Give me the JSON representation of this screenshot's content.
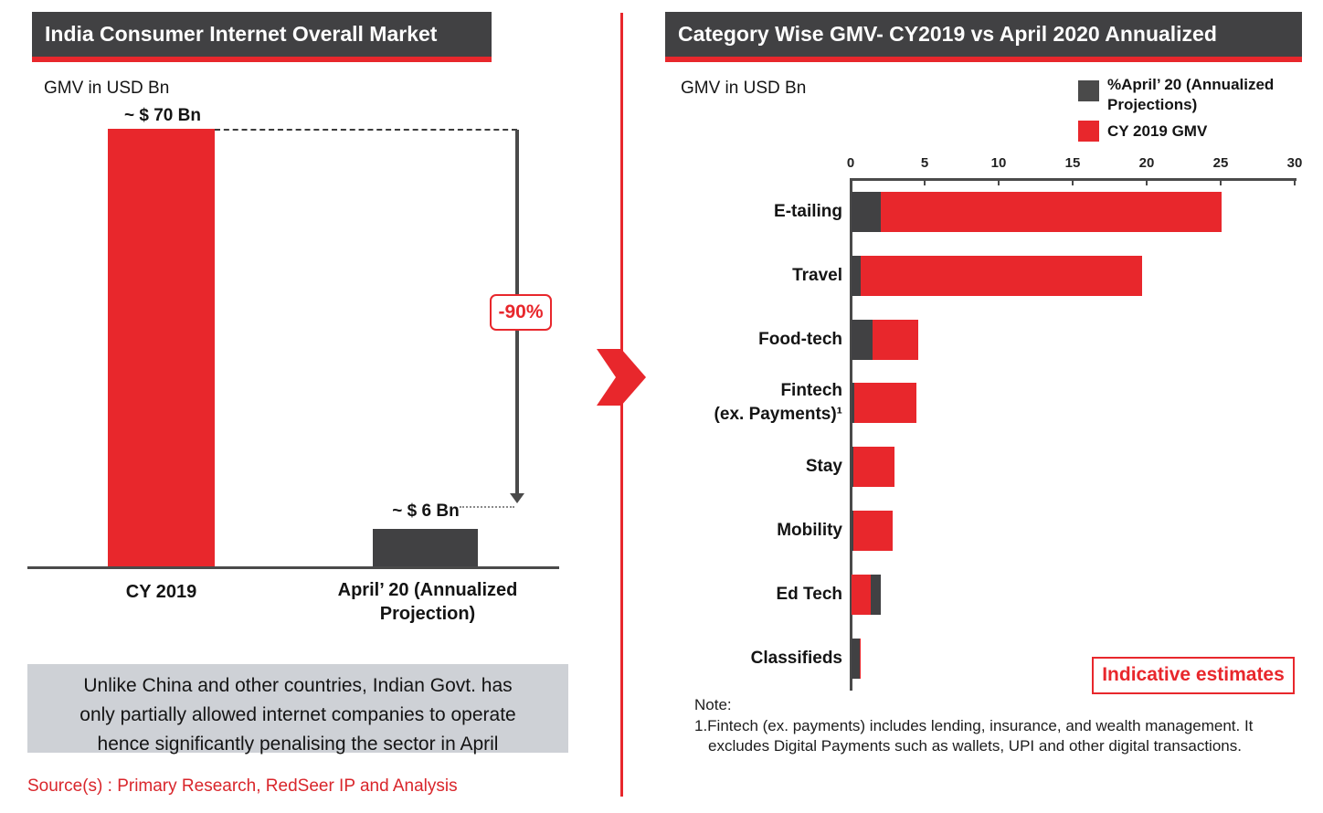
{
  "colors": {
    "red": "#e8272c",
    "dark": "#414143",
    "axis_gray": "#4a4a4a",
    "callout_bg": "#ced1d6"
  },
  "left_panel": {
    "title": "India Consumer Internet Overall Market",
    "unit_label": "GMV in USD Bn",
    "cat2_lines": [
      "April’ 20 (Annualized",
      "Projection)"
    ],
    "callout_lines": [
      "Unlike China and other countries, Indian Govt. has",
      "only partially allowed internet companies to operate",
      "hence significantly penalising the sector in April"
    ],
    "source": "Source(s) : Primary Research, RedSeer IP and Analysis"
  },
  "right_panel": {
    "title": "Category Wise GMV- CY2019 vs April 2020 Annualized",
    "unit_label": "GMV in USD Bn",
    "legend": {
      "item1_lines": [
        "%April’ 20 (Annualized",
        "Projections)"
      ],
      "item2_label": "CY 2019 GMV"
    },
    "note_title": "Note:",
    "note_lines": [
      "1.Fintech (ex. payments) includes lending, insurance, and wealth management. It",
      "excludes Digital Payments such as wallets, UPI and other  digital transactions."
    ]
  },
  "chart_data": [
    {
      "id": "overall-market",
      "type": "bar",
      "title": "India Consumer Internet Overall Market",
      "ylabel": "GMV in USD Bn",
      "categories": [
        "CY 2019",
        "April’ 20 (Annualized Projection)"
      ],
      "values": [
        70,
        6
      ],
      "value_labels": [
        "~ $ 70 Bn",
        "~ $ 6 Bn"
      ],
      "bar_colors": [
        "red",
        "dark"
      ],
      "ylim": [
        0,
        70
      ],
      "annotation": "-90%"
    },
    {
      "id": "category-gmv",
      "type": "bar",
      "orientation": "horizontal",
      "overlap": true,
      "title": "Category Wise GMV- CY2019 vs April 2020 Annualized",
      "ylabel": "GMV in USD Bn",
      "xlim": [
        0,
        30
      ],
      "xticks": [
        0,
        5,
        10,
        15,
        20,
        25,
        30
      ],
      "legend_position": "top-right",
      "categories": [
        "E-tailing",
        "Travel",
        "Food-tech",
        "Fintech (ex. Payments)¹",
        "Stay",
        "Mobility",
        "Ed Tech",
        "Classifieds"
      ],
      "category_label_lines": [
        [
          "E-tailing"
        ],
        [
          "Travel"
        ],
        [
          "Food-tech"
        ],
        [
          "Fintech",
          "(ex. Payments)¹"
        ],
        [
          "Stay"
        ],
        [
          "Mobility"
        ],
        [
          "Ed Tech"
        ],
        [
          "Classifieds"
        ]
      ],
      "series": [
        {
          "name": "%April’ 20 (Annualized Projections)",
          "color": "dark",
          "values": [
            2,
            0.6,
            1.4,
            0.2,
            0.1,
            0.1,
            2,
            0.55
          ]
        },
        {
          "name": "CY 2019 GMV",
          "color": "red",
          "values": [
            25,
            19.6,
            4.5,
            4.4,
            2.9,
            2.8,
            1.3,
            0.6
          ]
        }
      ],
      "annotation": "Indicative estimates"
    }
  ]
}
